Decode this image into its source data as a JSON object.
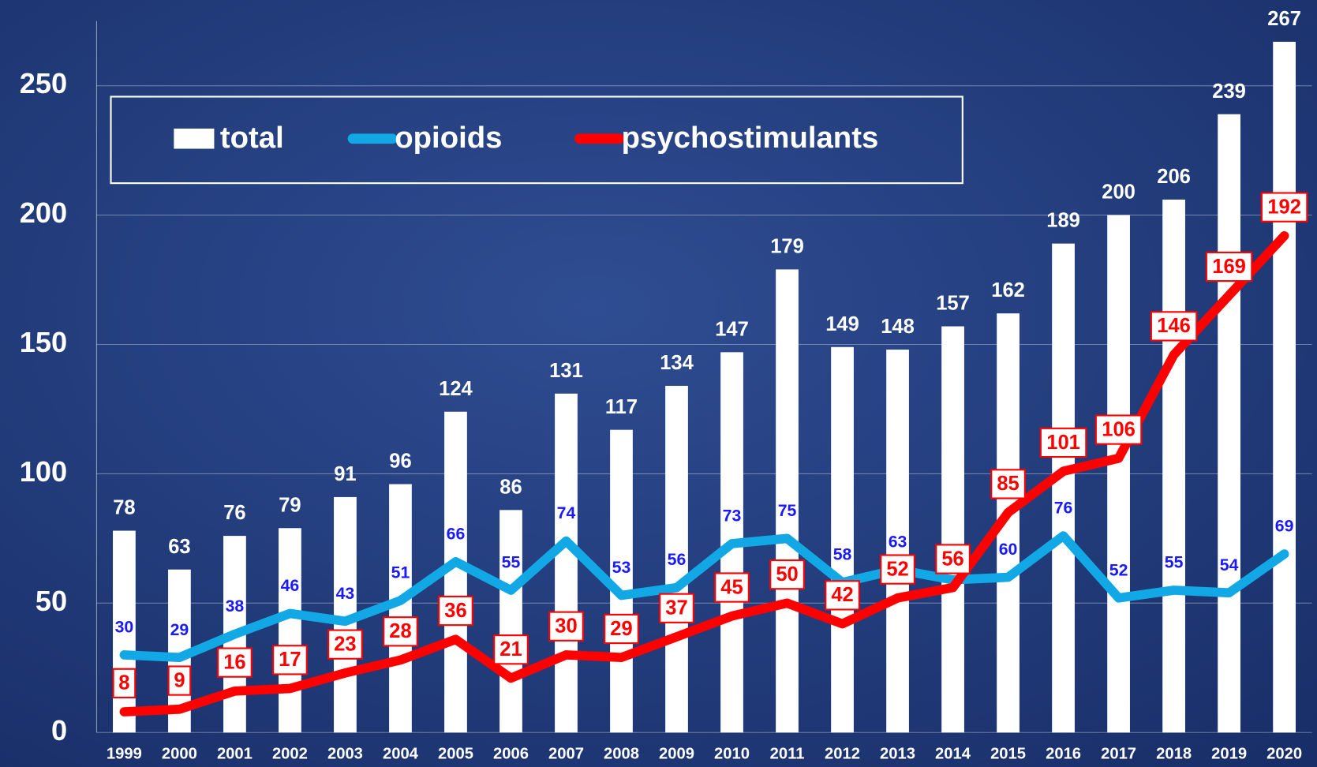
{
  "chart_data": {
    "type": "bar_line",
    "categories": [
      "1999",
      "2000",
      "2001",
      "2002",
      "2003",
      "2004",
      "2005",
      "2006",
      "2007",
      "2008",
      "2009",
      "2010",
      "2011",
      "2012",
      "2013",
      "2014",
      "2015",
      "2016",
      "2017",
      "2018",
      "2019",
      "2020"
    ],
    "series": [
      {
        "name": "total",
        "type": "bar",
        "color": "#ffffff",
        "values": [
          78,
          63,
          76,
          79,
          91,
          96,
          124,
          86,
          131,
          117,
          134,
          147,
          179,
          149,
          148,
          157,
          162,
          189,
          200,
          206,
          239,
          267
        ]
      },
      {
        "name": "opioids",
        "type": "line",
        "color": "#12a8e6",
        "label_color": "#1a1aff",
        "values": [
          30,
          29,
          38,
          46,
          43,
          51,
          66,
          55,
          74,
          53,
          56,
          73,
          75,
          58,
          63,
          59,
          60,
          76,
          52,
          55,
          54,
          69
        ],
        "value_labels": [
          "30",
          "29",
          "38",
          "46",
          "43",
          "51",
          "66",
          "55",
          "74",
          "53",
          "56",
          "73",
          "75",
          "58",
          "63",
          null,
          "60",
          "76",
          "52",
          "55",
          "54",
          "69"
        ]
      },
      {
        "name": "psychostimulants",
        "type": "line",
        "color": "#ff0000",
        "label_color": "#ff0000",
        "values": [
          8,
          9,
          16,
          17,
          23,
          28,
          36,
          21,
          30,
          29,
          37,
          45,
          50,
          42,
          52,
          56,
          85,
          101,
          106,
          146,
          169,
          192
        ]
      }
    ],
    "ylim": [
      0,
      275
    ],
    "yticks": [
      0,
      50,
      100,
      150,
      200,
      250
    ],
    "grid": true,
    "legend": "top"
  }
}
